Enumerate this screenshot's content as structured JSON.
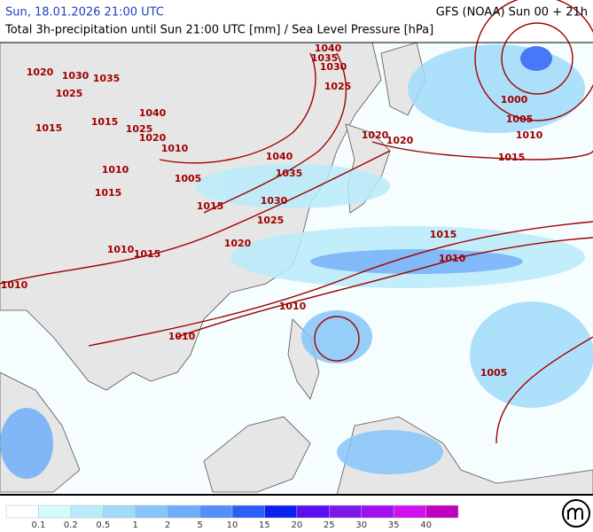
{
  "header": {
    "date": "Sun, 18.01.2026 21:00 UTC",
    "model": "GFS (NOAA) Sun 00 + 21h",
    "subtitle": "Total 3h-precipitation until Sun 21:00 UTC [mm] / Sea Level Pressure [hPa]"
  },
  "isobar_labels": [
    1040,
    1035,
    1030,
    1025,
    1020,
    1030,
    1035,
    1025,
    1015,
    1015,
    1040,
    1025,
    1020,
    1010,
    1010,
    1005,
    1015,
    1040,
    1035,
    1030,
    1015,
    1025,
    1020,
    1010,
    1015,
    1010,
    1020,
    1020,
    1000,
    1005,
    1010,
    1015,
    1015,
    1010,
    1010,
    1010,
    1005
  ],
  "legend": {
    "colors": [
      "#ffffff",
      "#d4fafa",
      "#b8ecfa",
      "#a0dcfa",
      "#86c6fa",
      "#6eaef8",
      "#5090f8",
      "#2a60f6",
      "#0a20f0",
      "#5810f0",
      "#7c18e8",
      "#a010ee",
      "#d010f0",
      "#c000c0"
    ],
    "labels": [
      0.1,
      0.2,
      0.5,
      1,
      2,
      5,
      10,
      15,
      20,
      25,
      30,
      35,
      40
    ]
  }
}
